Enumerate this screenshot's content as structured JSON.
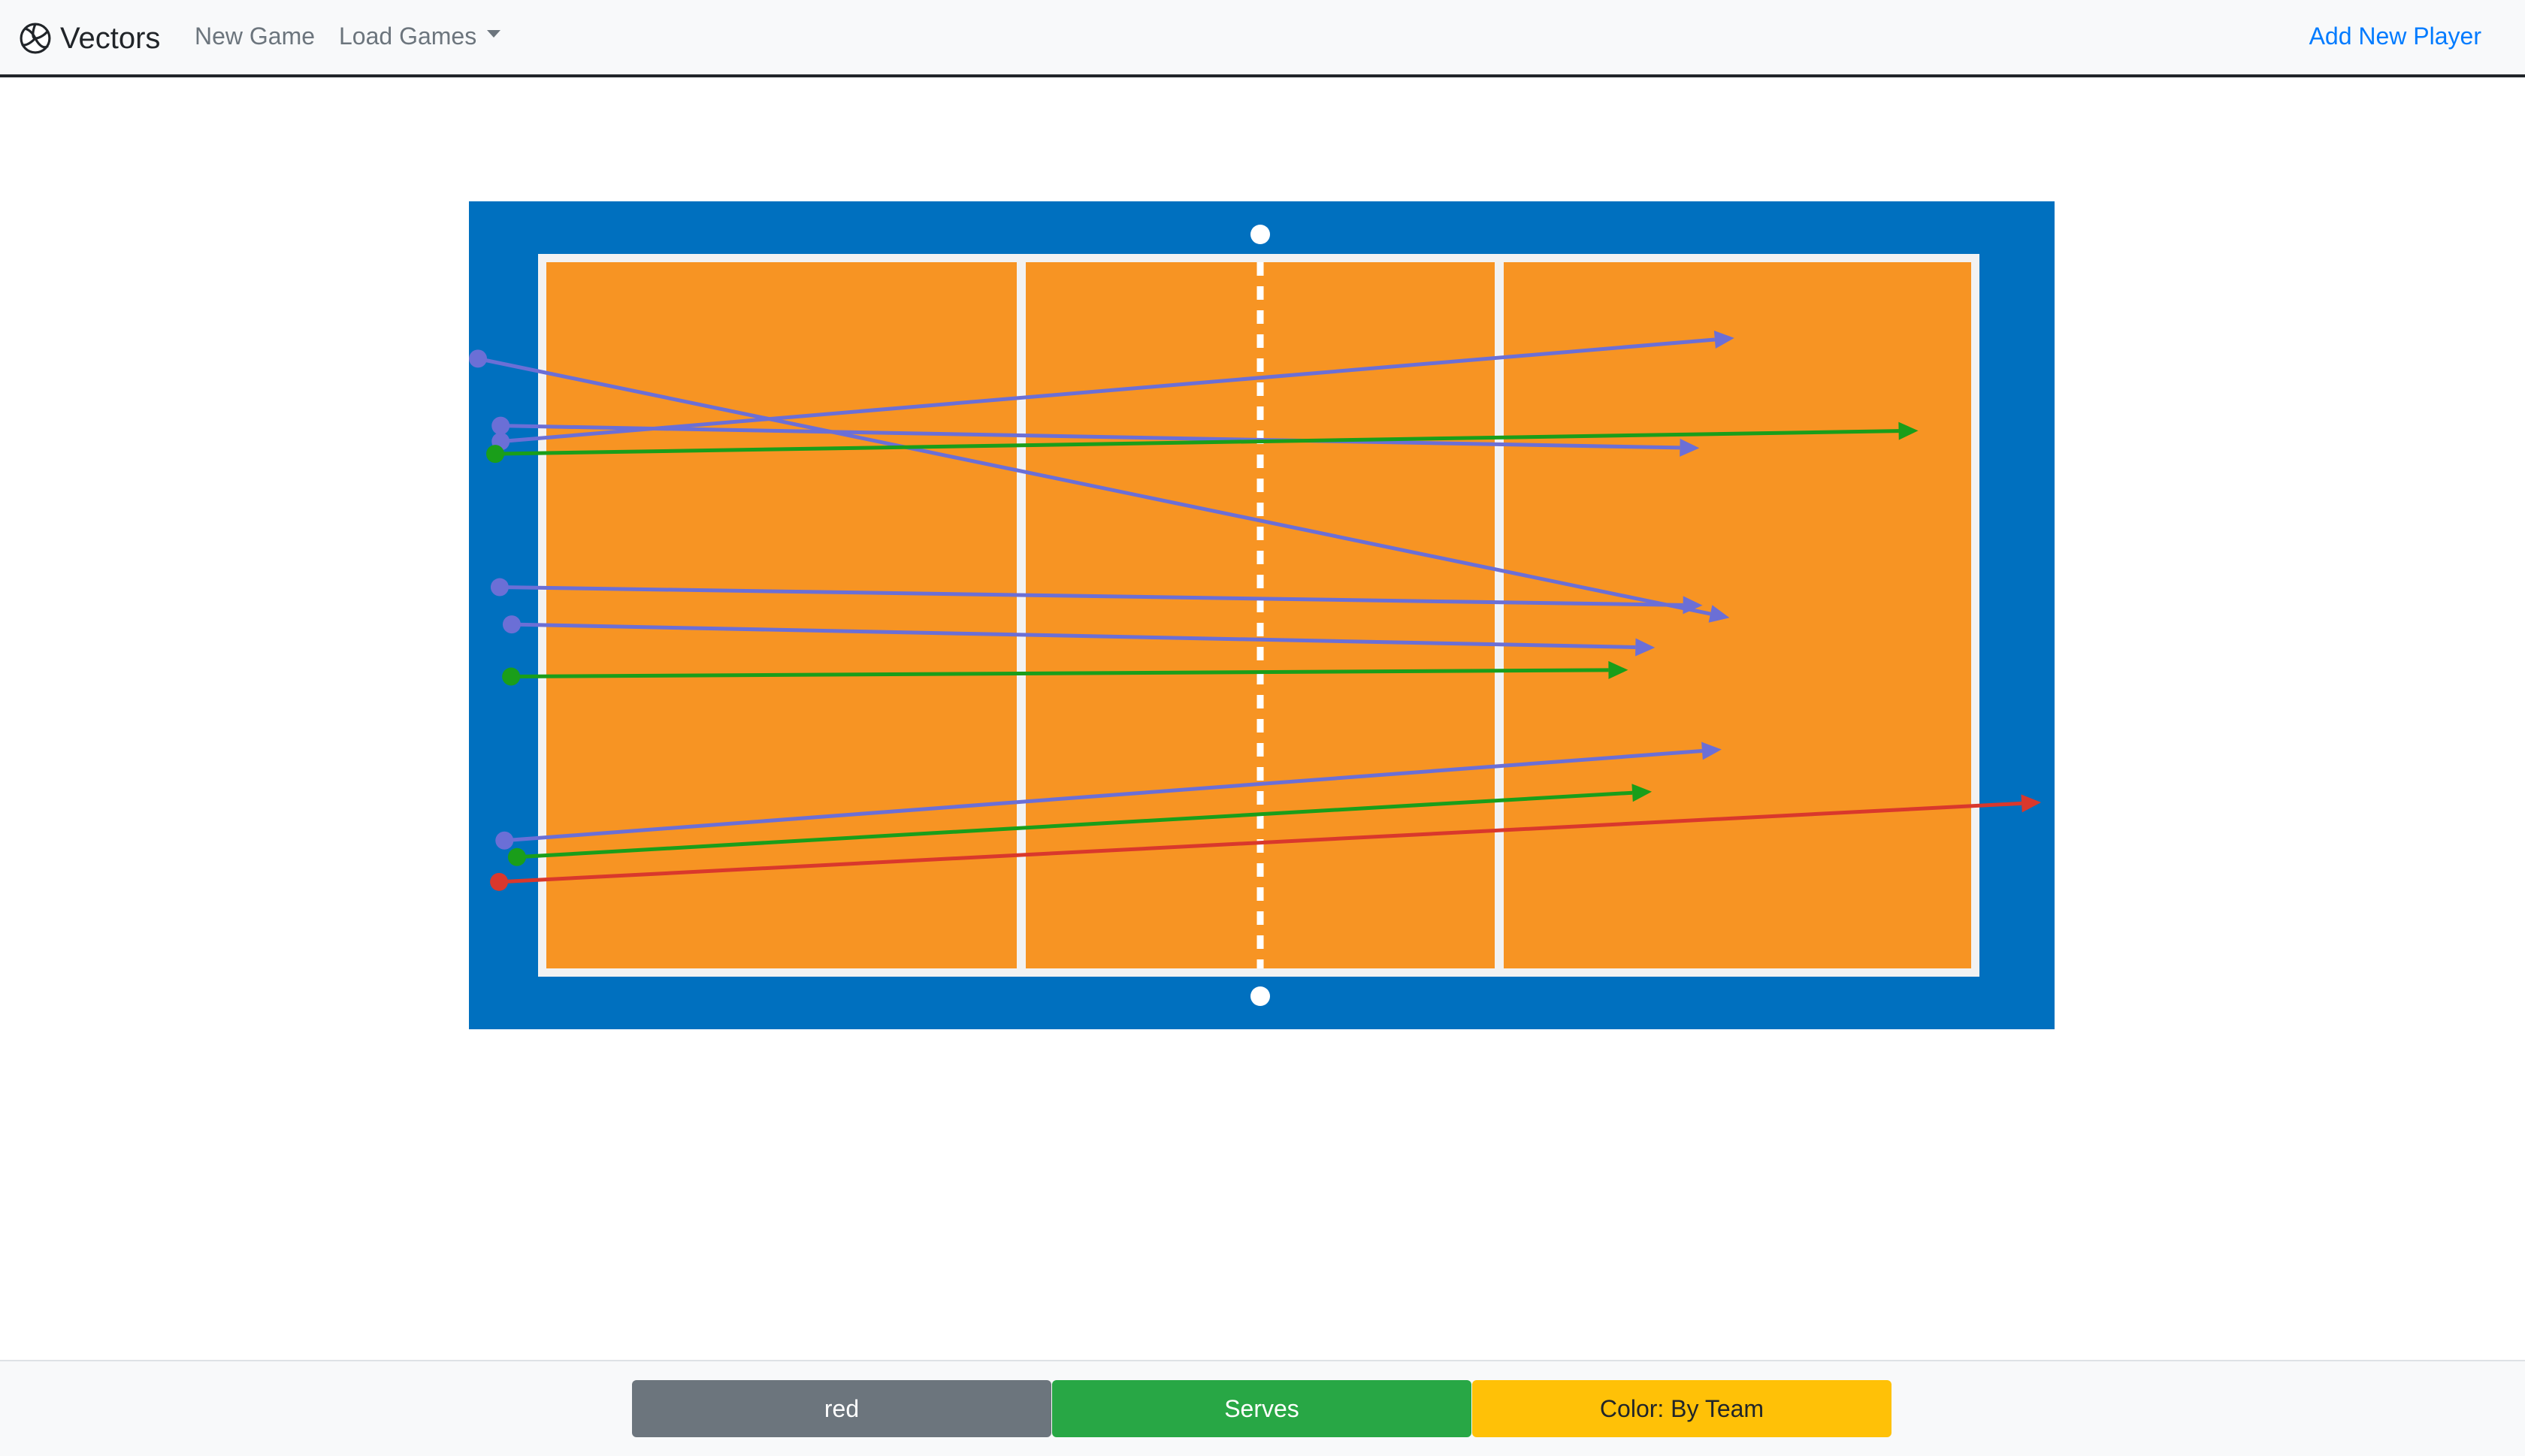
{
  "navbar": {
    "brand": "Vectors",
    "brand_icon": "volleyball-icon",
    "new_game": "New Game",
    "load_games": "Load Games",
    "add_player": "Add New Player",
    "link_color": "#007bff"
  },
  "court": {
    "outer_color": "#0070bf",
    "floor_color": "#f79423",
    "line_color": "#f2f2f2"
  },
  "vectors": [
    {
      "team": "blue",
      "color": "#6b6fd6",
      "from": [
        0.0057,
        0.19
      ],
      "to": [
        0.795,
        0.503
      ]
    },
    {
      "team": "blue",
      "color": "#6b6fd6",
      "from": [
        0.02,
        0.29
      ],
      "to": [
        0.798,
        0.165
      ]
    },
    {
      "team": "blue",
      "color": "#6b6fd6",
      "from": [
        0.02,
        0.271
      ],
      "to": [
        0.776,
        0.298
      ]
    },
    {
      "team": "green",
      "color": "#1a9e1a",
      "from": [
        0.0166,
        0.305
      ],
      "to": [
        0.914,
        0.277
      ]
    },
    {
      "team": "blue",
      "color": "#6b6fd6",
      "from": [
        0.0194,
        0.466
      ],
      "to": [
        0.778,
        0.488
      ]
    },
    {
      "team": "blue",
      "color": "#6b6fd6",
      "from": [
        0.027,
        0.511
      ],
      "to": [
        0.748,
        0.539
      ]
    },
    {
      "team": "green",
      "color": "#1a9e1a",
      "from": [
        0.0266,
        0.574
      ],
      "to": [
        0.731,
        0.566
      ]
    },
    {
      "team": "blue",
      "color": "#6b6fd6",
      "from": [
        0.0224,
        0.772
      ],
      "to": [
        0.79,
        0.662
      ]
    },
    {
      "team": "green",
      "color": "#1a9e1a",
      "from": [
        0.0303,
        0.792
      ],
      "to": [
        0.746,
        0.713
      ]
    },
    {
      "team": "red",
      "color": "#d9382c",
      "from": [
        0.019,
        0.822
      ],
      "to": [
        0.9915,
        0.726
      ]
    }
  ],
  "footer": {
    "team": "red",
    "shot_type": "Serves",
    "color_mode": "Color: By Team"
  }
}
